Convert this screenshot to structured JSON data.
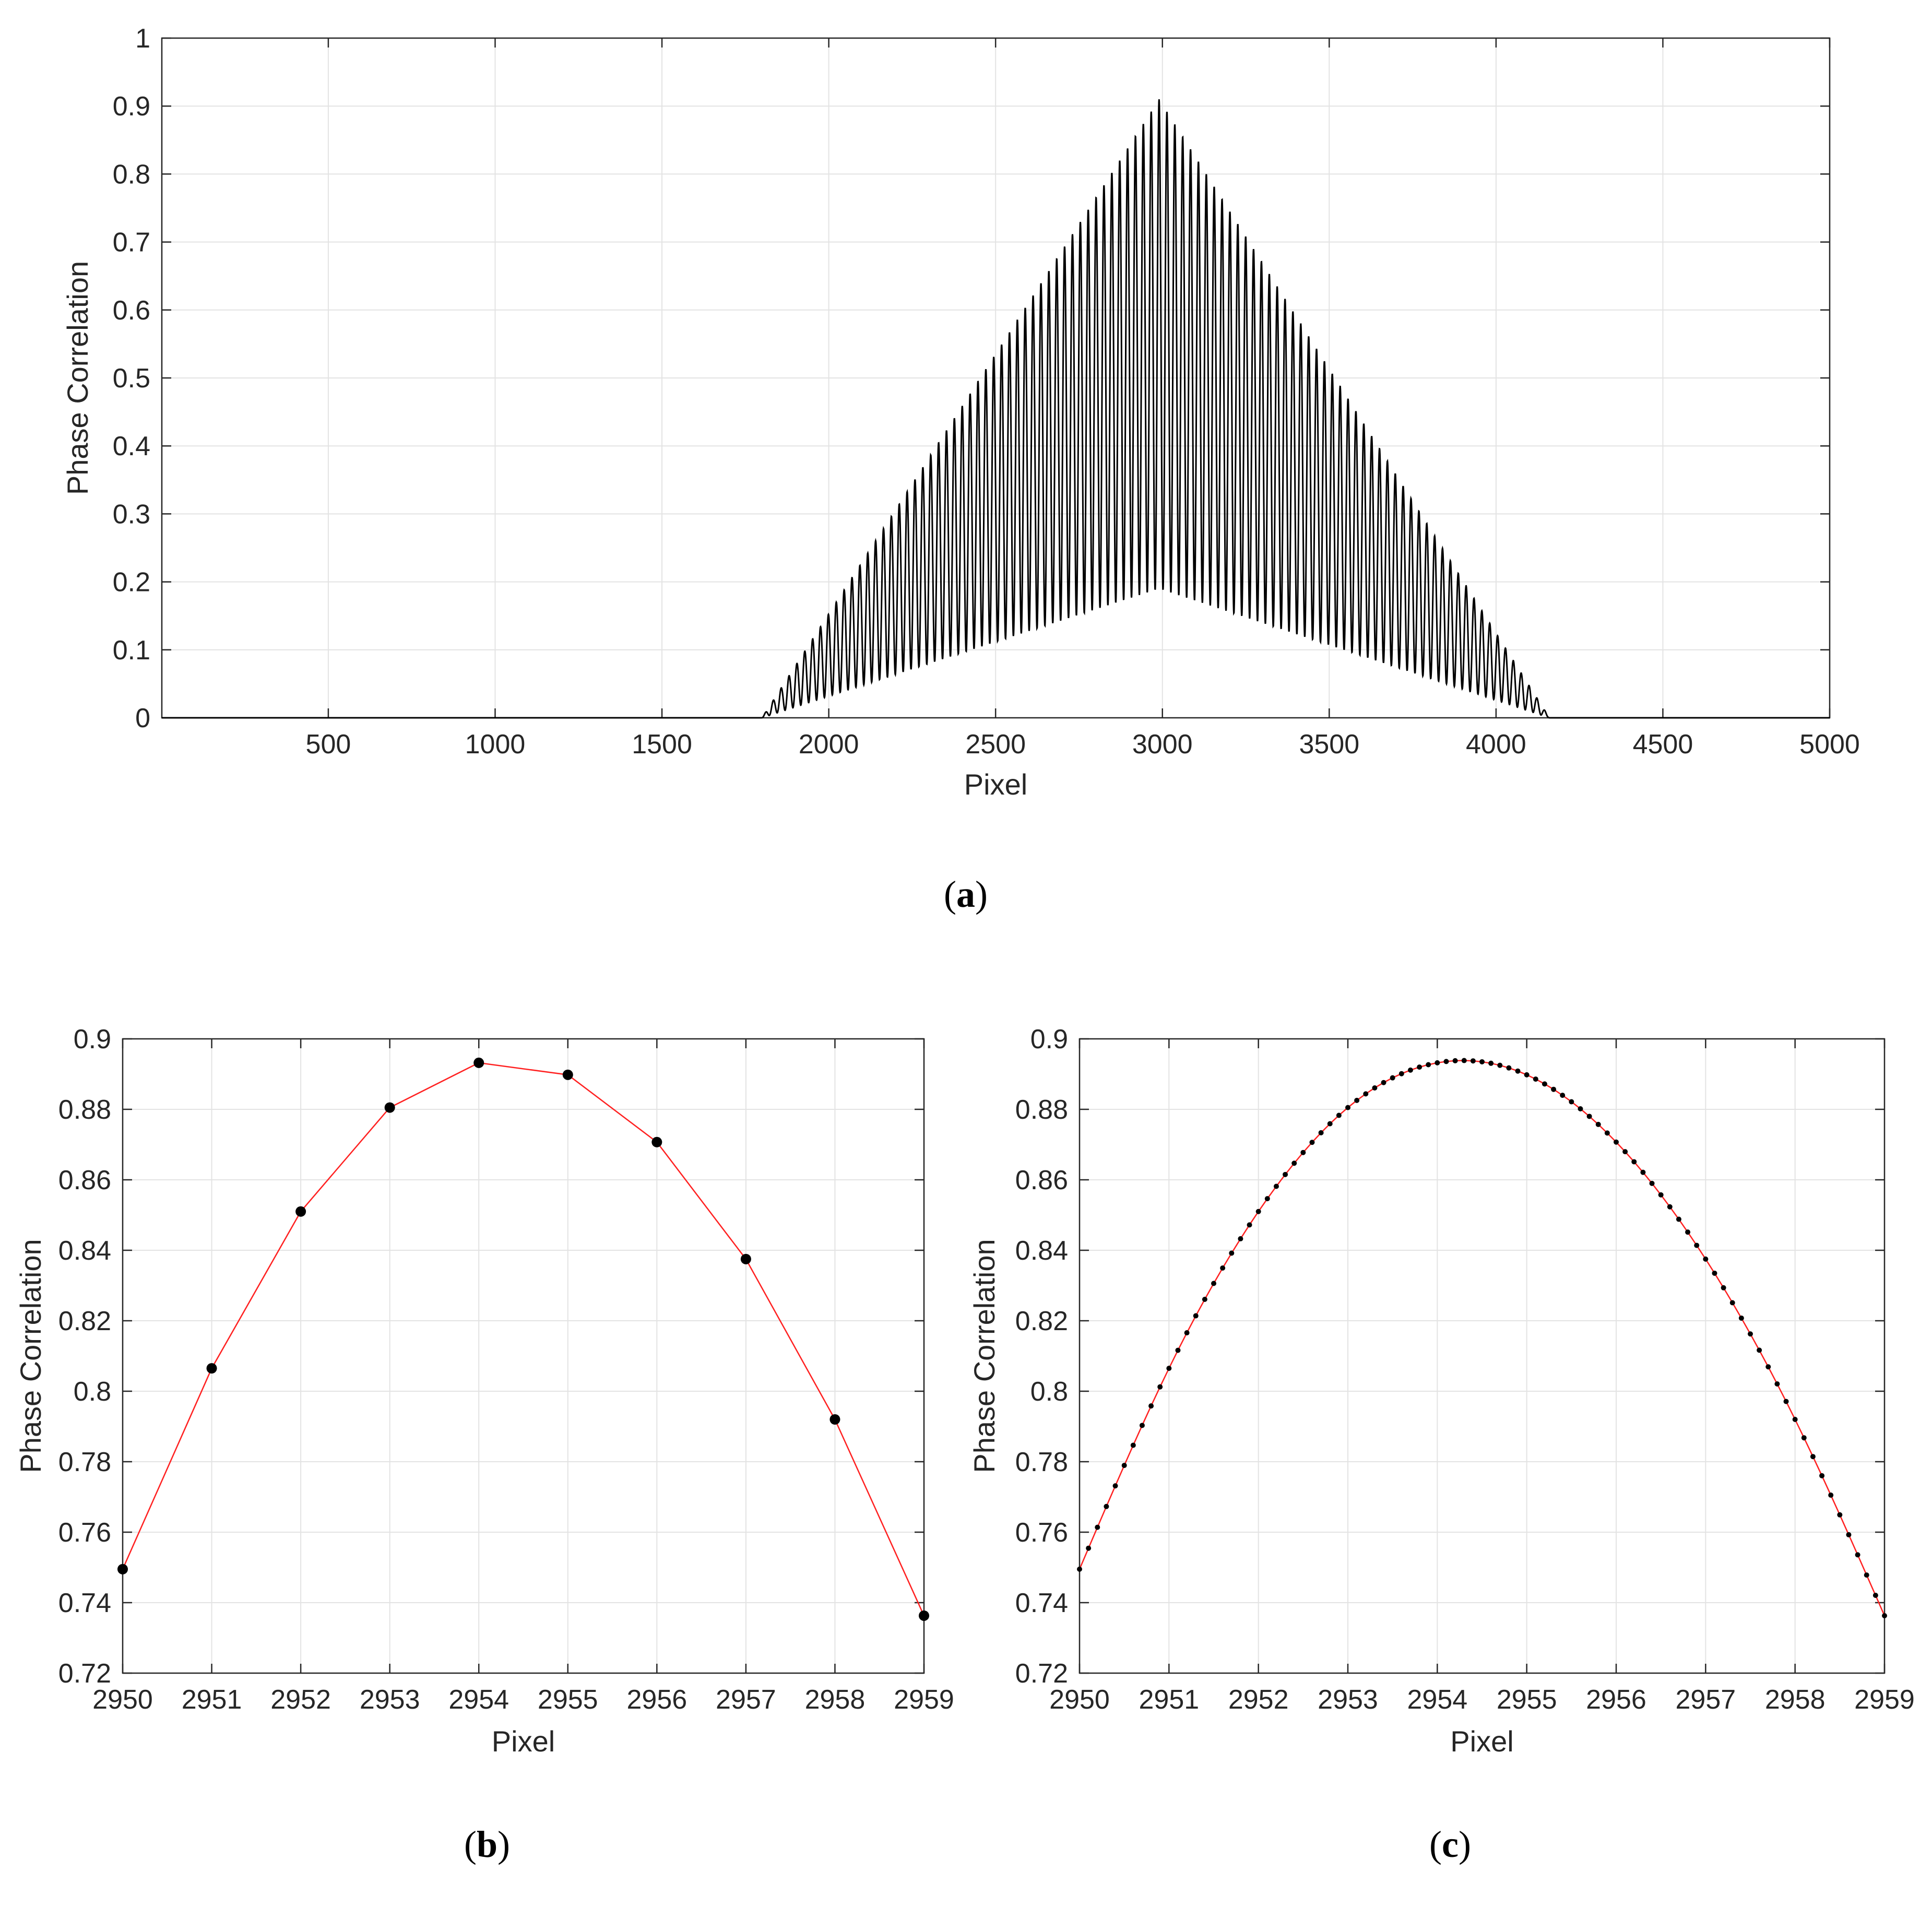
{
  "panels": [
    {
      "id": "a",
      "caption_open": "(",
      "caption_letter": "a",
      "caption_close": ")"
    },
    {
      "id": "b",
      "caption_open": "(",
      "caption_letter": "b",
      "caption_close": ")"
    },
    {
      "id": "c",
      "caption_open": "(",
      "caption_letter": "c",
      "caption_close": ")"
    }
  ],
  "chart_data": [
    {
      "panel": "a",
      "type": "line",
      "xlabel": "Pixel",
      "ylabel": "Phase Correlation",
      "xlim": [
        1,
        5000
      ],
      "ylim": [
        0,
        1
      ],
      "xticks": [
        500,
        1000,
        1500,
        2000,
        2500,
        3000,
        3500,
        4000,
        4500,
        5000
      ],
      "xtick_labels": [
        "500",
        "1000",
        "1500",
        "2000",
        "2500",
        "3000",
        "3500",
        "4000",
        "4500",
        "5000"
      ],
      "yticks": [
        0,
        0.1,
        0.2,
        0.3,
        0.4,
        0.5,
        0.6,
        0.7,
        0.8,
        0.9,
        1
      ],
      "ytick_labels": [
        "0",
        "0.1",
        "0.2",
        "0.3",
        "0.4",
        "0.5",
        "0.6",
        "0.7",
        "0.8",
        "0.9",
        "1"
      ],
      "grid": true,
      "color": "#000000",
      "signal": {
        "description_of_shape": "oscillating triangular envelope",
        "support": [
          1800,
          4160
        ],
        "peak_x": 2990,
        "upper_envelope_peak": 0.91,
        "lower_envelope_peak": 0.19,
        "oscillation_period": 23.6
      }
    },
    {
      "panel": "b",
      "type": "line",
      "xlabel": "Pixel",
      "ylabel": "Phase Correlation",
      "xlim": [
        2950,
        2959
      ],
      "ylim": [
        0.72,
        0.9
      ],
      "xticks": [
        2950,
        2951,
        2952,
        2953,
        2954,
        2955,
        2956,
        2957,
        2958,
        2959
      ],
      "xtick_labels": [
        "2950",
        "2951",
        "2952",
        "2953",
        "2954",
        "2955",
        "2956",
        "2957",
        "2958",
        "2959"
      ],
      "yticks": [
        0.72,
        0.74,
        0.76,
        0.78,
        0.8,
        0.82,
        0.84,
        0.86,
        0.88,
        0.9
      ],
      "ytick_labels": [
        "0.72",
        "0.74",
        "0.76",
        "0.78",
        "0.8",
        "0.82",
        "0.84",
        "0.86",
        "0.88",
        "0.9"
      ],
      "grid": true,
      "line_color": "#ff2020",
      "marker_color": "#000000",
      "x": [
        2950,
        2951,
        2952,
        2953,
        2954,
        2955,
        2956,
        2957,
        2958,
        2959
      ],
      "y": [
        0.7495,
        0.8065,
        0.851,
        0.8805,
        0.8932,
        0.8898,
        0.8707,
        0.8375,
        0.792,
        0.7363
      ]
    },
    {
      "panel": "c",
      "type": "line",
      "xlabel": "Pixel",
      "ylabel": "Phase Correlation",
      "xlim": [
        2950,
        2959
      ],
      "ylim": [
        0.72,
        0.9
      ],
      "xticks": [
        2950,
        2951,
        2952,
        2953,
        2954,
        2955,
        2956,
        2957,
        2958,
        2959
      ],
      "xtick_labels": [
        "2950",
        "2951",
        "2952",
        "2953",
        "2954",
        "2955",
        "2956",
        "2957",
        "2958",
        "2959"
      ],
      "yticks": [
        0.72,
        0.74,
        0.76,
        0.78,
        0.8,
        0.82,
        0.84,
        0.86,
        0.88,
        0.9
      ],
      "ytick_labels": [
        "0.72",
        "0.74",
        "0.76",
        "0.78",
        "0.8",
        "0.82",
        "0.84",
        "0.86",
        "0.88",
        "0.9"
      ],
      "grid": true,
      "line_color": "#ff2020",
      "marker_color": "#000000",
      "interpolation": {
        "x_start": 2950,
        "x_end": 2959,
        "x_step": 0.1,
        "knots_x": [
          2950,
          2951,
          2952,
          2953,
          2954,
          2955,
          2956,
          2957,
          2958,
          2959
        ],
        "knots_y": [
          0.7495,
          0.8065,
          0.851,
          0.8805,
          0.8932,
          0.8898,
          0.8707,
          0.8375,
          0.792,
          0.7363
        ]
      }
    }
  ]
}
